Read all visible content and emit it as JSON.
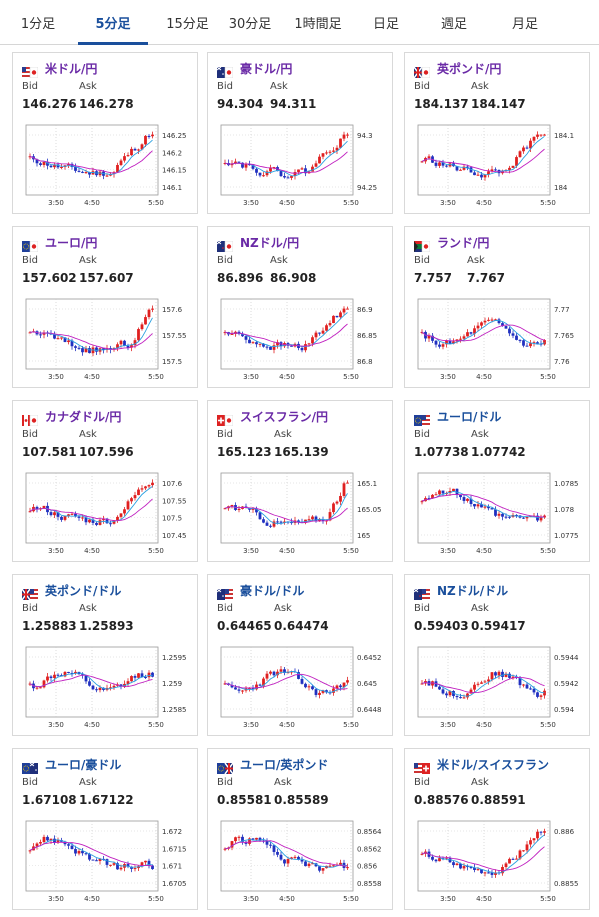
{
  "tabs": [
    "1分足",
    "5分足",
    "15分足",
    "30分足",
    "1時間足",
    "日足",
    "週足",
    "月足"
  ],
  "active_tab": "5分足",
  "bid_label": "Bid",
  "ask_label": "Ask",
  "x_ticks": [
    "3:50",
    "4:50",
    "5:50"
  ],
  "cards": [
    {
      "pair": "米ドル/円",
      "flag": "us-jp-flag",
      "bid": "146.276",
      "ask": "146.278",
      "yticks": [
        "146.25",
        "146.2",
        "146.15",
        "146.1"
      ],
      "seed": 11,
      "trend": "up"
    },
    {
      "pair": "豪ドル/円",
      "flag": "au-jp-flag",
      "bid": "94.304",
      "ask": "94.311",
      "yticks": [
        "94.3",
        "94.25"
      ],
      "seed": 22,
      "trend": "up"
    },
    {
      "pair": "英ポンド/円",
      "flag": "gb-jp-flag",
      "bid": "184.137",
      "ask": "184.147",
      "yticks": [
        "184.1",
        "184"
      ],
      "seed": 33,
      "trend": "up"
    },
    {
      "pair": "ユーロ/円",
      "flag": "eu-jp-flag",
      "bid": "157.602",
      "ask": "157.607",
      "yticks": [
        "157.6",
        "157.55",
        "157.5"
      ],
      "seed": 44,
      "trend": "vdown"
    },
    {
      "pair": "NZドル/円",
      "flag": "nz-jp-flag",
      "bid": "86.896",
      "ask": "86.908",
      "yticks": [
        "86.9",
        "86.85",
        "86.8"
      ],
      "seed": 55,
      "trend": "up"
    },
    {
      "pair": "ランド/円",
      "flag": "za-jp-flag",
      "bid": "7.757",
      "ask": "7.767",
      "yticks": [
        "7.77",
        "7.765",
        "7.76"
      ],
      "seed": 66,
      "trend": "flat"
    },
    {
      "pair": "カナダドル/円",
      "flag": "ca-jp-flag",
      "bid": "107.581",
      "ask": "107.596",
      "yticks": [
        "107.6",
        "107.55",
        "107.5",
        "107.45"
      ],
      "seed": 77,
      "trend": "up"
    },
    {
      "pair": "スイスフラン/円",
      "flag": "ch-jp-flag",
      "bid": "165.123",
      "ask": "165.139",
      "yticks": [
        "165.1",
        "165.05",
        "165"
      ],
      "seed": 88,
      "trend": "vdown"
    },
    {
      "pair": "ユーロ/ドル",
      "flag": "eu-us-flag",
      "bid": "1.07738",
      "ask": "1.07742",
      "yticks": [
        "1.0785",
        "1.078",
        "1.0775"
      ],
      "seed": 99,
      "trend": "down"
    },
    {
      "pair": "英ポンド/ドル",
      "flag": "gb-us-flag",
      "bid": "1.25883",
      "ask": "1.25893",
      "yticks": [
        "1.2595",
        "1.259",
        "1.2585"
      ],
      "seed": 12,
      "trend": "flat"
    },
    {
      "pair": "豪ドル/ドル",
      "flag": "au-us-flag",
      "bid": "0.64465",
      "ask": "0.64474",
      "yticks": [
        "0.6452",
        "0.645",
        "0.6448"
      ],
      "seed": 23,
      "trend": "flat"
    },
    {
      "pair": "NZドル/ドル",
      "flag": "nz-us-flag",
      "bid": "0.59403",
      "ask": "0.59417",
      "yticks": [
        "0.5944",
        "0.5942",
        "0.594"
      ],
      "seed": 34,
      "trend": "flat"
    },
    {
      "pair": "ユーロ/豪ドル",
      "flag": "eu-au-flag",
      "bid": "1.67108",
      "ask": "1.67122",
      "yticks": [
        "1.672",
        "1.6715",
        "1.671",
        "1.6705"
      ],
      "seed": 45,
      "trend": "down"
    },
    {
      "pair": "ユーロ/英ポンド",
      "flag": "eu-gb-flag",
      "bid": "0.85581",
      "ask": "0.85589",
      "yticks": [
        "0.8564",
        "0.8562",
        "0.856",
        "0.8558"
      ],
      "seed": 56,
      "trend": "down"
    },
    {
      "pair": "米ドル/スイスフラン",
      "flag": "us-ch-flag",
      "bid": "0.88576",
      "ask": "0.88591",
      "yticks": [
        "0.886",
        "0.8855"
      ],
      "seed": 67,
      "trend": "up"
    }
  ]
}
